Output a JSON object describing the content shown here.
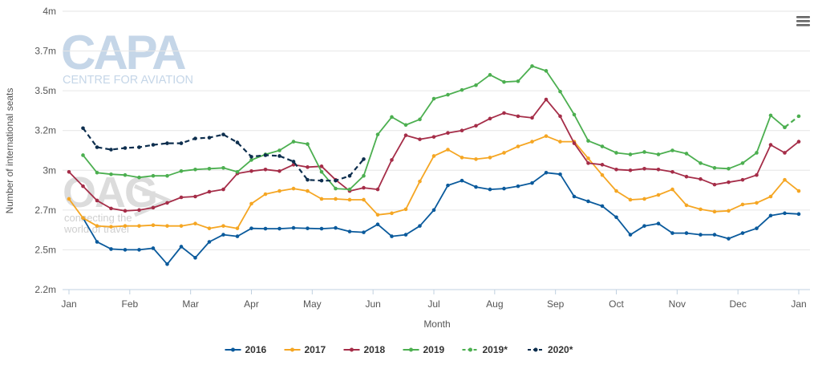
{
  "watermarks": {
    "capa_logo": "CAPA",
    "capa_tagline": "CENTRE FOR AVIATION",
    "oag_logo": "OAG",
    "oag_tagline_1": "connecting the",
    "oag_tagline_2": "world of travel"
  },
  "menu": {
    "icon": "hamburger-menu-icon"
  },
  "colors": {
    "2016": "#0a5a9c",
    "2017": "#f5a623",
    "2018": "#a52d48",
    "2019": "#4caf50",
    "2019*": "#4caf50",
    "2020*": "#0d2e4e",
    "grid": "#e6e6e6",
    "axis": "#c0d0e0"
  },
  "chart_data": {
    "type": "line",
    "title": "",
    "xlabel": "Month",
    "ylabel": "Number of international seats",
    "x_ticks": [
      "Jan",
      "Feb",
      "Mar",
      "Apr",
      "May",
      "Jun",
      "Jul",
      "Aug",
      "Sep",
      "Oct",
      "Nov",
      "Dec",
      "Jan"
    ],
    "y_ticks": [
      "2.2m",
      "2.5m",
      "2.7m",
      "3m",
      "3.2m",
      "3.5m",
      "3.7m",
      "4m"
    ],
    "y_tick_values": [
      2.2,
      2.45,
      2.7,
      2.95,
      3.2,
      3.45,
      3.7,
      3.95
    ],
    "ylim": [
      2.2,
      3.95
    ],
    "x_unit": "week",
    "xlim": [
      0,
      52
    ],
    "grid": true,
    "legend_position": "bottom-center",
    "series": [
      {
        "name": "2016",
        "style": "solid",
        "points": [
          [
            1,
            2.65
          ],
          [
            2,
            2.5
          ],
          [
            3,
            2.455
          ],
          [
            4,
            2.45
          ],
          [
            5,
            2.45
          ],
          [
            6,
            2.46
          ],
          [
            7,
            2.36
          ],
          [
            8,
            2.47
          ],
          [
            9,
            2.4
          ],
          [
            10,
            2.5
          ],
          [
            11,
            2.545
          ],
          [
            12,
            2.535
          ],
          [
            13,
            2.585
          ],
          [
            14,
            2.583
          ],
          [
            15,
            2.583
          ],
          [
            16,
            2.588
          ],
          [
            17,
            2.585
          ],
          [
            18,
            2.583
          ],
          [
            19,
            2.588
          ],
          [
            20,
            2.565
          ],
          [
            21,
            2.56
          ],
          [
            22,
            2.61
          ],
          [
            23,
            2.535
          ],
          [
            24,
            2.545
          ],
          [
            25,
            2.6
          ],
          [
            26,
            2.7
          ],
          [
            27,
            2.855
          ],
          [
            28,
            2.885
          ],
          [
            29,
            2.845
          ],
          [
            30,
            2.83
          ],
          [
            31,
            2.835
          ],
          [
            32,
            2.85
          ],
          [
            33,
            2.87
          ],
          [
            34,
            2.935
          ],
          [
            35,
            2.925
          ],
          [
            36,
            2.785
          ],
          [
            37,
            2.755
          ],
          [
            38,
            2.725
          ],
          [
            39,
            2.655
          ],
          [
            40,
            2.545
          ],
          [
            41,
            2.6
          ],
          [
            42,
            2.615
          ],
          [
            43,
            2.555
          ],
          [
            44,
            2.555
          ],
          [
            45,
            2.545
          ],
          [
            46,
            2.545
          ],
          [
            47,
            2.52
          ],
          [
            48,
            2.555
          ],
          [
            49,
            2.585
          ],
          [
            50,
            2.665
          ],
          [
            51,
            2.68
          ],
          [
            52,
            2.675
          ]
        ]
      },
      {
        "name": "2017",
        "style": "solid",
        "points": [
          [
            0,
            2.77
          ],
          [
            1,
            2.65
          ],
          [
            2,
            2.6
          ],
          [
            3,
            2.595
          ],
          [
            4,
            2.6
          ],
          [
            5,
            2.6
          ],
          [
            6,
            2.605
          ],
          [
            7,
            2.6
          ],
          [
            8,
            2.6
          ],
          [
            9,
            2.615
          ],
          [
            10,
            2.585
          ],
          [
            11,
            2.6
          ],
          [
            12,
            2.585
          ],
          [
            13,
            2.74
          ],
          [
            14,
            2.8
          ],
          [
            15,
            2.82
          ],
          [
            16,
            2.835
          ],
          [
            17,
            2.82
          ],
          [
            18,
            2.77
          ],
          [
            19,
            2.77
          ],
          [
            20,
            2.765
          ],
          [
            21,
            2.765
          ],
          [
            22,
            2.67
          ],
          [
            23,
            2.68
          ],
          [
            24,
            2.705
          ],
          [
            25,
            2.88
          ],
          [
            26,
            3.04
          ],
          [
            27,
            3.08
          ],
          [
            28,
            3.03
          ],
          [
            29,
            3.02
          ],
          [
            30,
            3.03
          ],
          [
            31,
            3.06
          ],
          [
            32,
            3.1
          ],
          [
            33,
            3.13
          ],
          [
            34,
            3.165
          ],
          [
            35,
            3.13
          ],
          [
            36,
            3.13
          ],
          [
            37,
            3.025
          ],
          [
            38,
            2.92
          ],
          [
            39,
            2.82
          ],
          [
            40,
            2.765
          ],
          [
            41,
            2.77
          ],
          [
            42,
            2.795
          ],
          [
            43,
            2.83
          ],
          [
            44,
            2.73
          ],
          [
            45,
            2.705
          ],
          [
            46,
            2.69
          ],
          [
            47,
            2.695
          ],
          [
            48,
            2.735
          ],
          [
            49,
            2.745
          ],
          [
            50,
            2.785
          ],
          [
            51,
            2.89
          ],
          [
            52,
            2.82
          ]
        ]
      },
      {
        "name": "2018",
        "style": "solid",
        "points": [
          [
            0,
            2.94
          ],
          [
            1,
            2.85
          ],
          [
            2,
            2.76
          ],
          [
            3,
            2.71
          ],
          [
            4,
            2.695
          ],
          [
            5,
            2.7
          ],
          [
            6,
            2.715
          ],
          [
            7,
            2.745
          ],
          [
            8,
            2.78
          ],
          [
            9,
            2.785
          ],
          [
            10,
            2.815
          ],
          [
            11,
            2.83
          ],
          [
            12,
            2.93
          ],
          [
            13,
            2.945
          ],
          [
            14,
            2.955
          ],
          [
            15,
            2.945
          ],
          [
            16,
            2.985
          ],
          [
            17,
            2.97
          ],
          [
            18,
            2.975
          ],
          [
            19,
            2.89
          ],
          [
            20,
            2.82
          ],
          [
            21,
            2.84
          ],
          [
            22,
            2.83
          ],
          [
            23,
            3.015
          ],
          [
            24,
            3.17
          ],
          [
            25,
            3.145
          ],
          [
            26,
            3.16
          ],
          [
            27,
            3.185
          ],
          [
            28,
            3.2
          ],
          [
            29,
            3.23
          ],
          [
            30,
            3.275
          ],
          [
            31,
            3.31
          ],
          [
            32,
            3.29
          ],
          [
            33,
            3.28
          ],
          [
            34,
            3.395
          ],
          [
            35,
            3.29
          ],
          [
            36,
            3.12
          ],
          [
            37,
            2.995
          ],
          [
            38,
            2.985
          ],
          [
            39,
            2.955
          ],
          [
            40,
            2.95
          ],
          [
            41,
            2.96
          ],
          [
            42,
            2.955
          ],
          [
            43,
            2.94
          ],
          [
            44,
            2.91
          ],
          [
            45,
            2.895
          ],
          [
            46,
            2.86
          ],
          [
            47,
            2.875
          ],
          [
            48,
            2.89
          ],
          [
            49,
            2.92
          ],
          [
            50,
            3.11
          ],
          [
            51,
            3.06
          ],
          [
            52,
            3.13
          ]
        ]
      },
      {
        "name": "2019",
        "style": "solid",
        "points": [
          [
            1,
            3.045
          ],
          [
            2,
            2.935
          ],
          [
            3,
            2.925
          ],
          [
            4,
            2.92
          ],
          [
            5,
            2.905
          ],
          [
            6,
            2.915
          ],
          [
            7,
            2.915
          ],
          [
            8,
            2.945
          ],
          [
            9,
            2.955
          ],
          [
            10,
            2.96
          ],
          [
            11,
            2.965
          ],
          [
            12,
            2.94
          ],
          [
            13,
            3.015
          ],
          [
            14,
            3.05
          ],
          [
            15,
            3.075
          ],
          [
            16,
            3.13
          ],
          [
            17,
            3.115
          ],
          [
            18,
            2.94
          ],
          [
            19,
            2.835
          ],
          [
            20,
            2.83
          ],
          [
            21,
            2.915
          ],
          [
            22,
            3.175
          ],
          [
            23,
            3.285
          ],
          [
            24,
            3.235
          ],
          [
            25,
            3.27
          ],
          [
            26,
            3.4
          ],
          [
            27,
            3.425
          ],
          [
            28,
            3.455
          ],
          [
            29,
            3.485
          ],
          [
            30,
            3.55
          ],
          [
            31,
            3.505
          ],
          [
            32,
            3.51
          ],
          [
            33,
            3.605
          ],
          [
            34,
            3.575
          ],
          [
            35,
            3.445
          ],
          [
            36,
            3.3
          ],
          [
            37,
            3.135
          ],
          [
            38,
            3.1
          ],
          [
            39,
            3.06
          ],
          [
            40,
            3.05
          ],
          [
            41,
            3.065
          ],
          [
            42,
            3.05
          ],
          [
            43,
            3.075
          ],
          [
            44,
            3.055
          ],
          [
            45,
            2.995
          ],
          [
            46,
            2.965
          ],
          [
            47,
            2.96
          ],
          [
            48,
            2.995
          ],
          [
            49,
            3.06
          ],
          [
            50,
            3.295
          ],
          [
            51,
            3.22
          ]
        ]
      },
      {
        "name": "2019*",
        "style": "dashed",
        "points": [
          [
            51,
            3.22
          ],
          [
            52,
            3.29
          ]
        ]
      },
      {
        "name": "2020*",
        "style": "dashed",
        "points": [
          [
            1,
            3.215
          ],
          [
            2,
            3.095
          ],
          [
            3,
            3.08
          ],
          [
            4,
            3.09
          ],
          [
            5,
            3.095
          ],
          [
            6,
            3.11
          ],
          [
            7,
            3.12
          ],
          [
            8,
            3.12
          ],
          [
            9,
            3.15
          ],
          [
            10,
            3.155
          ],
          [
            11,
            3.175
          ],
          [
            12,
            3.125
          ],
          [
            13,
            3.035
          ],
          [
            14,
            3.045
          ],
          [
            15,
            3.04
          ],
          [
            16,
            3.005
          ],
          [
            17,
            2.89
          ],
          [
            18,
            2.885
          ],
          [
            19,
            2.885
          ],
          [
            20,
            2.915
          ],
          [
            21,
            3.02
          ]
        ]
      }
    ]
  },
  "legend": {
    "items": [
      {
        "label": "2016",
        "series": "2016"
      },
      {
        "label": "2017",
        "series": "2017"
      },
      {
        "label": "2018",
        "series": "2018"
      },
      {
        "label": "2019",
        "series": "2019"
      },
      {
        "label": "2019*",
        "series": "2019*"
      },
      {
        "label": "2020*",
        "series": "2020*"
      }
    ]
  }
}
